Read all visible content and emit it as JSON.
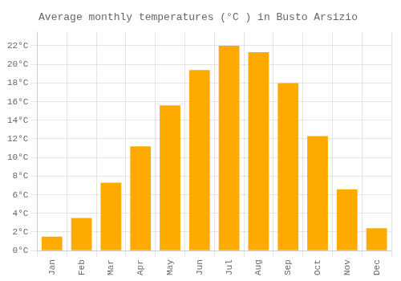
{
  "chart_data": {
    "type": "bar",
    "title": "Average monthly temperatures (°C ) in Busto Arsizio",
    "categories": [
      "Jan",
      "Feb",
      "Mar",
      "Apr",
      "May",
      "Jun",
      "Jul",
      "Aug",
      "Sep",
      "Oct",
      "Nov",
      "Dec"
    ],
    "values": [
      1.5,
      3.5,
      7.3,
      11.2,
      15.6,
      19.4,
      22.0,
      21.3,
      18.0,
      12.3,
      6.6,
      2.4
    ],
    "color": "#FFAA00",
    "ylim": [
      0,
      23.5
    ],
    "yticks": [
      {
        "value": 0,
        "label": "0°C"
      },
      {
        "value": 2,
        "label": "2°C"
      },
      {
        "value": 4,
        "label": "4°C"
      },
      {
        "value": 6,
        "label": "6°C"
      },
      {
        "value": 8,
        "label": "8°C"
      },
      {
        "value": 10,
        "label": "10°C"
      },
      {
        "value": 12,
        "label": "12°C"
      },
      {
        "value": 14,
        "label": "14°C"
      },
      {
        "value": 16,
        "label": "16°C"
      },
      {
        "value": 18,
        "label": "18°C"
      },
      {
        "value": 20,
        "label": "20°C"
      },
      {
        "value": 22,
        "label": "22°C"
      }
    ],
    "grid": true
  }
}
